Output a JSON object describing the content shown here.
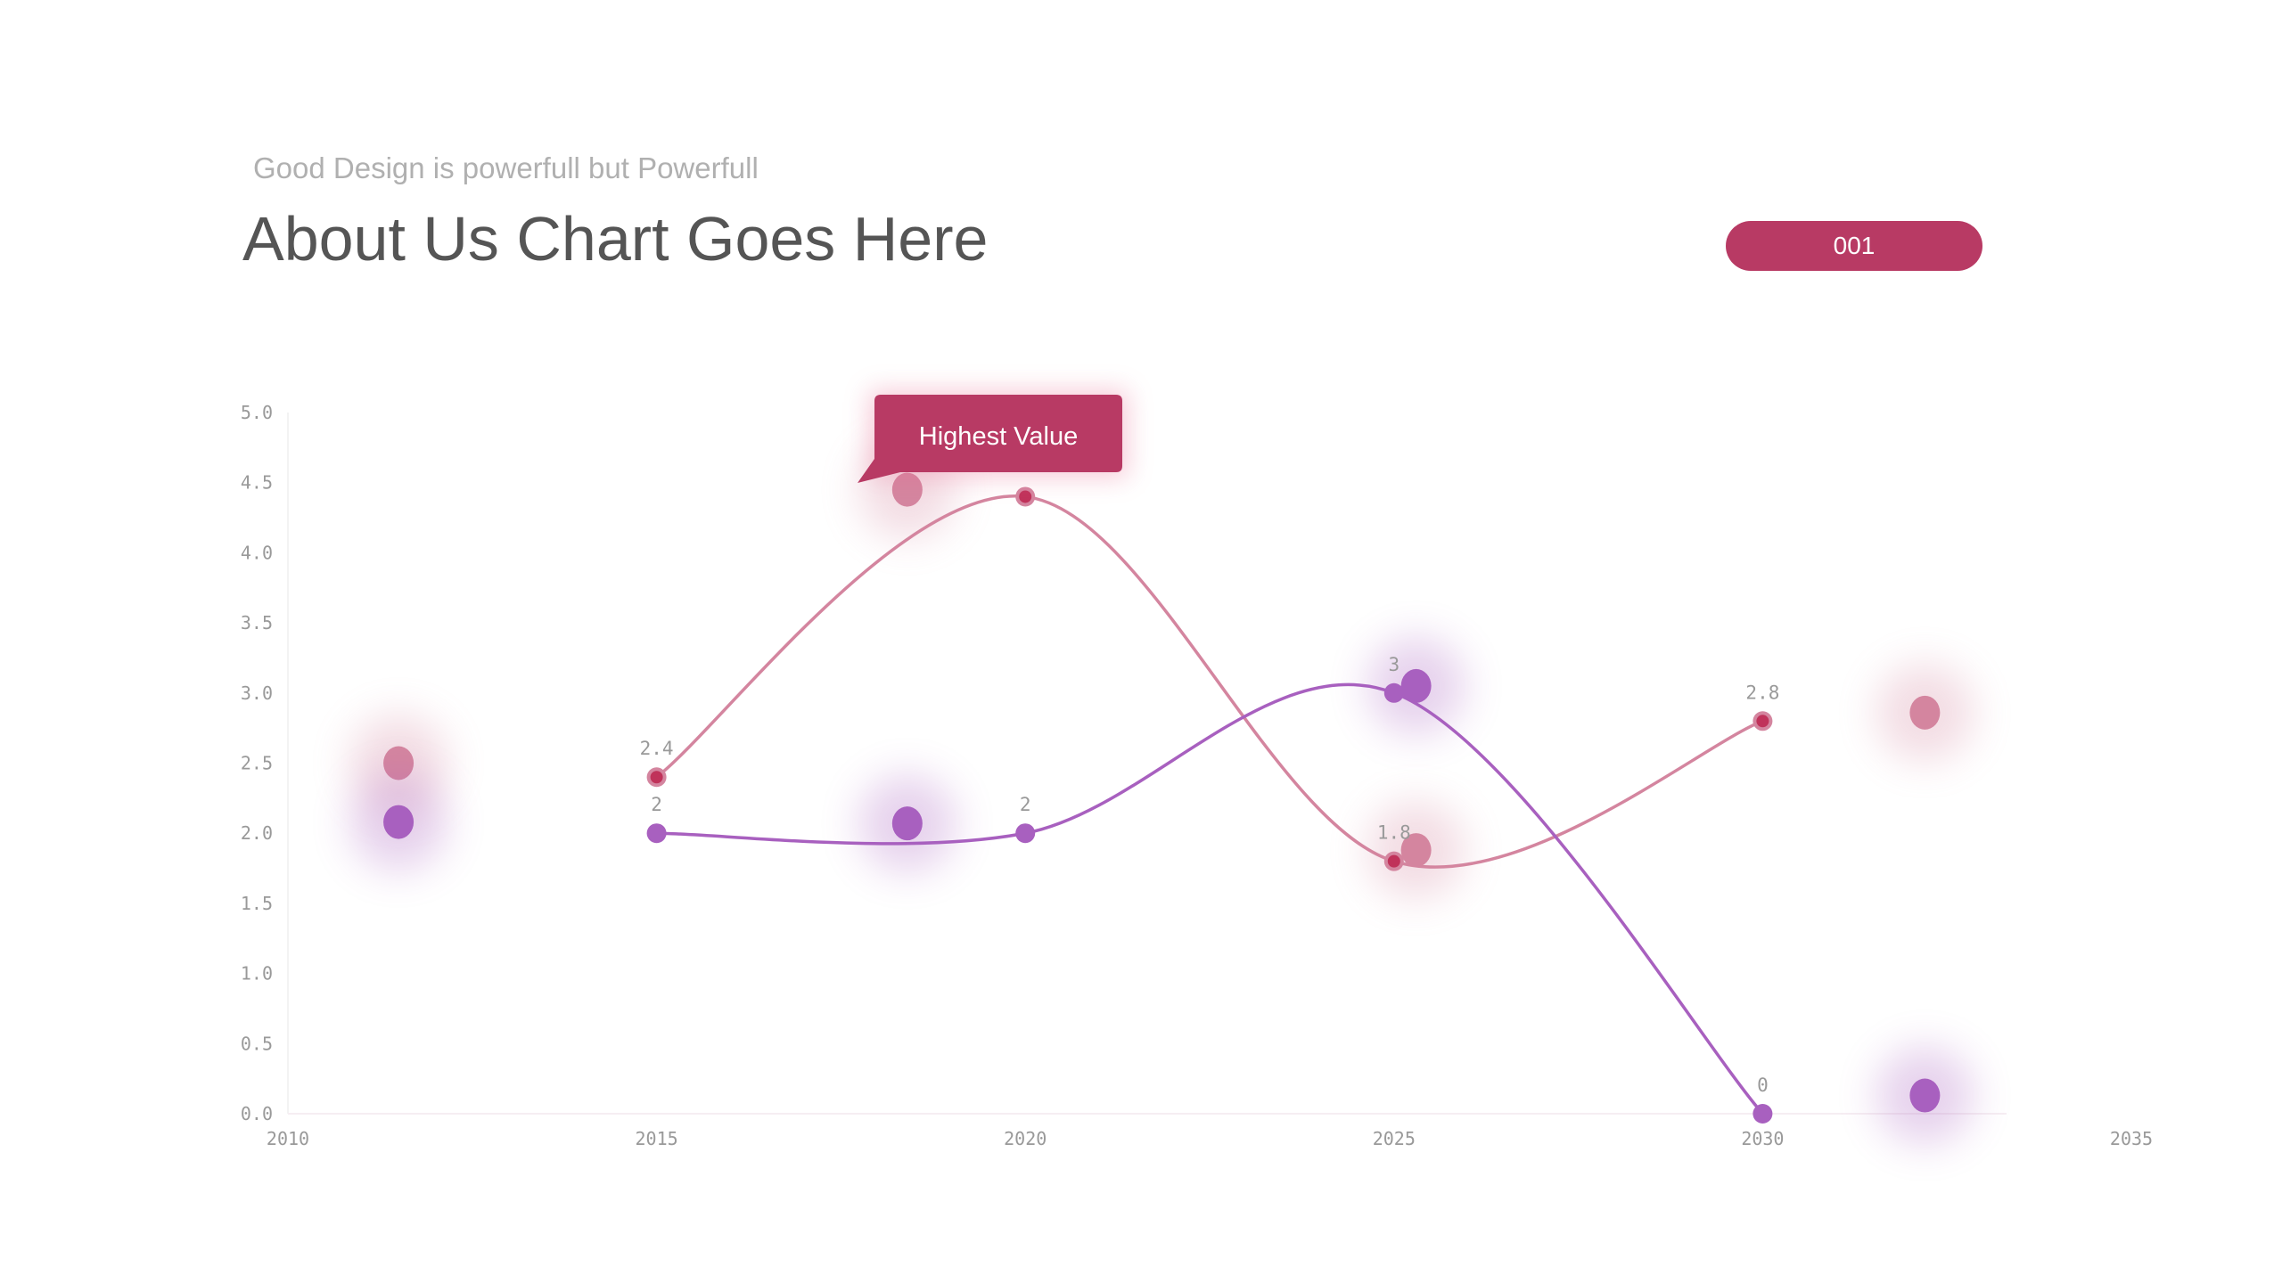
{
  "header": {
    "subtitle": "Good Design is powerfull but Powerfull",
    "title": "About Us Chart Goes Here",
    "badge": "001"
  },
  "colors": {
    "accent": "#b83a64",
    "series1_line": "#d4859f",
    "series1_marker": "#c0325a",
    "series2": "#a860bf"
  },
  "chart_data": {
    "type": "line",
    "xlim": [
      2010,
      2035
    ],
    "ylim": [
      0,
      5
    ],
    "x_ticks": [
      "2010",
      "2015",
      "2020",
      "2025",
      "2030",
      "2035"
    ],
    "y_ticks": [
      "0.0",
      "0.5",
      "1.0",
      "1.5",
      "2.0",
      "2.5",
      "3.0",
      "3.5",
      "4.0",
      "4.5",
      "5.0"
    ],
    "grid": false,
    "smooth": true,
    "series": [
      {
        "x": [
          2015,
          2020,
          2025,
          2030
        ],
        "values": [
          2.4,
          4.4,
          1.8,
          2.8
        ],
        "labels": [
          "2.4",
          "",
          "1.8",
          "2.8"
        ],
        "color": "#d4859f"
      },
      {
        "x": [
          2015,
          2020,
          2025,
          2030
        ],
        "values": [
          2,
          2,
          3,
          0
        ],
        "labels": [
          "2",
          "2",
          "3",
          "0"
        ],
        "color": "#a860bf"
      }
    ],
    "bubbles": [
      {
        "x": 2011.5,
        "y": 2.5,
        "color": "#d4859f"
      },
      {
        "x": 2018.4,
        "y": 4.45,
        "color": "#d4859f"
      },
      {
        "x": 2025.3,
        "y": 1.88,
        "color": "#d4859f"
      },
      {
        "x": 2032.2,
        "y": 2.86,
        "color": "#d4859f"
      },
      {
        "x": 2011.5,
        "y": 2.08,
        "color": "#a860bf"
      },
      {
        "x": 2018.4,
        "y": 2.07,
        "color": "#a860bf"
      },
      {
        "x": 2025.3,
        "y": 3.05,
        "color": "#a860bf"
      },
      {
        "x": 2032.2,
        "y": 0.13,
        "color": "#a860bf"
      }
    ],
    "annotation": {
      "text": "Highest Value",
      "x": 2020,
      "y": 4.4
    }
  }
}
